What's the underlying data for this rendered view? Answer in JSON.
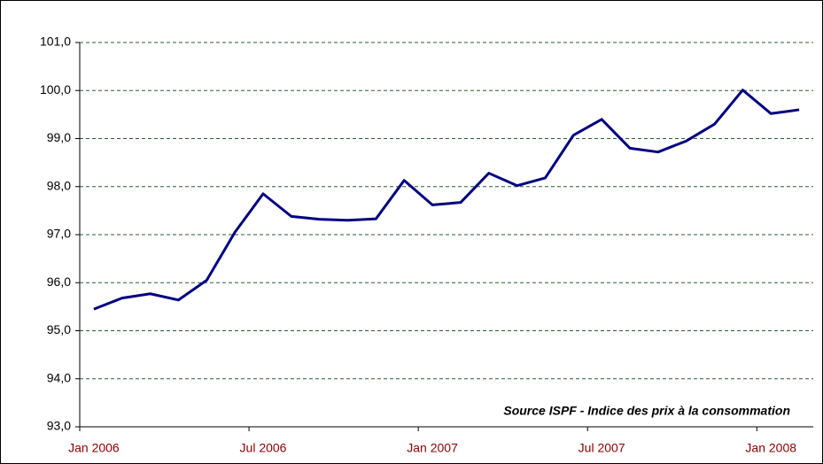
{
  "chart_data": {
    "type": "line",
    "categories": [
      "Jan 2006",
      null,
      null,
      null,
      null,
      null,
      "Jul 2006",
      null,
      null,
      null,
      null,
      null,
      "Jan 2007",
      null,
      null,
      null,
      null,
      null,
      "Jul 2007",
      null,
      null,
      null,
      null,
      null,
      "Jan 2008",
      null
    ],
    "series": [
      {
        "name": "Indice des prix à la consommation",
        "color": "#000080",
        "values": [
          95.45,
          95.68,
          95.77,
          95.64,
          96.05,
          97.05,
          97.85,
          97.38,
          97.32,
          97.3,
          97.33,
          98.13,
          97.62,
          97.67,
          98.28,
          98.02,
          98.18,
          99.07,
          99.4,
          98.8,
          98.72,
          98.95,
          99.3,
          100.01,
          99.52,
          99.6
        ]
      }
    ],
    "ylim": [
      93,
      101
    ],
    "yticks": [
      {
        "value": 93,
        "label": "93,0"
      },
      {
        "value": 94,
        "label": "94,0"
      },
      {
        "value": 95,
        "label": "95,0"
      },
      {
        "value": 96,
        "label": "96,0"
      },
      {
        "value": 97,
        "label": "97,0"
      },
      {
        "value": 98,
        "label": "98,0"
      },
      {
        "value": 99,
        "label": "99,0"
      },
      {
        "value": 100,
        "label": "100,0"
      },
      {
        "value": 101,
        "label": "101,0"
      }
    ],
    "grid": true,
    "annotation": "Source ISPF - Indice des prix à la consommation"
  }
}
